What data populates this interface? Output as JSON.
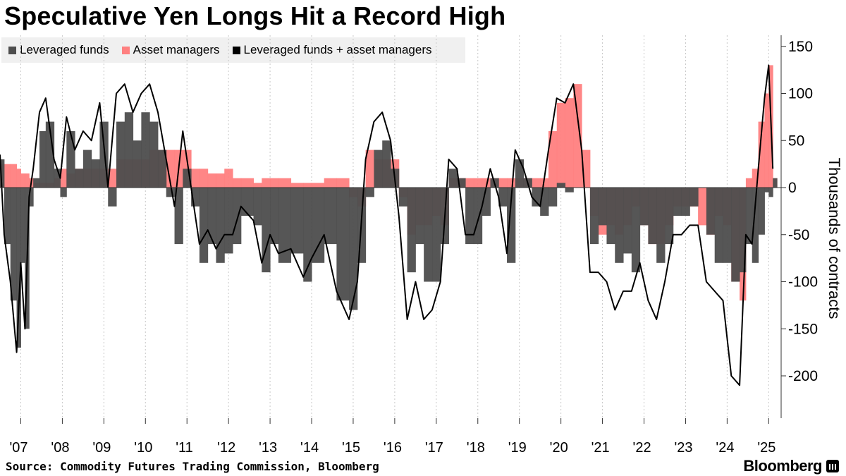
{
  "header": {
    "title": "Speculative Yen Longs Hit a Record High"
  },
  "legend": {
    "items": [
      {
        "label": "Leveraged funds",
        "color": "#4d4d4d"
      },
      {
        "label": "Asset managers",
        "color": "#ff8080"
      },
      {
        "label": "Leveraged funds + asset managers",
        "color": "#000000"
      }
    ]
  },
  "footer": {
    "source": "Source: Commodity Futures Trading Commission, Bloomberg",
    "brand": "Bloomberg"
  },
  "chart_data": {
    "type": "area",
    "title": "Speculative Yen Longs Hit a Record High",
    "ylabel": "Thousands of contracts",
    "xlabel": "",
    "ylim": [
      -250,
      160
    ],
    "y_ticks": [
      150,
      100,
      50,
      0,
      -50,
      -100,
      -150,
      -200
    ],
    "x_ticks": [
      "'07",
      "'08",
      "'09",
      "'10",
      "'11",
      "'12",
      "'13",
      "'14",
      "'15",
      "'16",
      "'17",
      "'18",
      "'19",
      "'20",
      "'21",
      "'22",
      "'23",
      "'24",
      "'25"
    ],
    "x_tick_values": [
      2007,
      2008,
      2009,
      2010,
      2011,
      2012,
      2013,
      2014,
      2015,
      2016,
      2017,
      2018,
      2019,
      2020,
      2021,
      2022,
      2023,
      2024,
      2025
    ],
    "xlim": [
      2006.5,
      2025.3
    ],
    "grid": "vertical-dotted",
    "legend_position": "top-left",
    "x": [
      2006.5,
      2006.6,
      2006.75,
      2006.9,
      2007.0,
      2007.1,
      2007.2,
      2007.3,
      2007.45,
      2007.6,
      2007.8,
      2007.95,
      2008.1,
      2008.3,
      2008.5,
      2008.7,
      2008.9,
      2009.1,
      2009.3,
      2009.5,
      2009.7,
      2009.9,
      2010.1,
      2010.3,
      2010.5,
      2010.7,
      2010.9,
      2011.1,
      2011.3,
      2011.5,
      2011.7,
      2011.9,
      2012.1,
      2012.3,
      2012.6,
      2012.8,
      2013.0,
      2013.2,
      2013.5,
      2013.8,
      2014.0,
      2014.3,
      2014.6,
      2014.9,
      2015.1,
      2015.3,
      2015.5,
      2015.7,
      2015.9,
      2016.1,
      2016.3,
      2016.5,
      2016.7,
      2016.9,
      2017.1,
      2017.3,
      2017.5,
      2017.7,
      2017.9,
      2018.1,
      2018.3,
      2018.5,
      2018.7,
      2018.9,
      2019.1,
      2019.3,
      2019.5,
      2019.7,
      2019.9,
      2020.1,
      2020.3,
      2020.5,
      2020.7,
      2020.9,
      2021.1,
      2021.3,
      2021.5,
      2021.7,
      2021.9,
      2022.1,
      2022.3,
      2022.5,
      2022.7,
      2022.9,
      2023.1,
      2023.3,
      2023.5,
      2023.7,
      2023.9,
      2024.1,
      2024.3,
      2024.45,
      2024.6,
      2024.75,
      2024.9,
      2025.0,
      2025.1
    ],
    "series": [
      {
        "name": "Leveraged funds",
        "values": [
          30,
          -60,
          -120,
          -170,
          -80,
          -150,
          -20,
          10,
          60,
          70,
          20,
          -10,
          60,
          20,
          40,
          30,
          70,
          -20,
          70,
          80,
          50,
          80,
          70,
          40,
          -10,
          -60,
          20,
          -20,
          -80,
          -60,
          -80,
          -70,
          -60,
          -30,
          -40,
          -90,
          -60,
          -80,
          -70,
          -100,
          -80,
          -60,
          -120,
          -130,
          -80,
          -10,
          40,
          50,
          20,
          -20,
          -90,
          -60,
          -100,
          -100,
          -60,
          20,
          10,
          -60,
          -60,
          -30,
          10,
          -20,
          -80,
          30,
          10,
          -20,
          -30,
          -20,
          5,
          -5,
          0,
          0,
          -60,
          -40,
          -60,
          -80,
          -70,
          -90,
          -40,
          -60,
          -80,
          -60,
          -30,
          -30,
          -20,
          0,
          -50,
          -80,
          -80,
          -100,
          -90,
          -60,
          -80,
          -50,
          -5,
          -10,
          10
        ]
      },
      {
        "name": "Asset managers",
        "values": [
          25,
          25,
          25,
          20,
          15,
          15,
          10,
          5,
          5,
          5,
          10,
          20,
          15,
          20,
          20,
          20,
          20,
          20,
          30,
          30,
          30,
          30,
          40,
          40,
          40,
          40,
          40,
          20,
          20,
          15,
          15,
          20,
          10,
          10,
          5,
          10,
          10,
          10,
          5,
          5,
          5,
          10,
          10,
          -10,
          -20,
          40,
          30,
          30,
          30,
          -10,
          -50,
          -40,
          -40,
          -30,
          -40,
          10,
          10,
          10,
          10,
          10,
          10,
          10,
          10,
          10,
          10,
          10,
          10,
          60,
          90,
          95,
          110,
          40,
          -30,
          -50,
          -40,
          -50,
          -40,
          -20,
          -40,
          -60,
          -60,
          -40,
          -20,
          -20,
          -20,
          -40,
          -50,
          -30,
          -40,
          -100,
          -120,
          10,
          20,
          70,
          100,
          130,
          10
        ]
      },
      {
        "name": "Leveraged funds + asset managers",
        "values": [
          35,
          -50,
          -100,
          -175,
          -80,
          -150,
          -10,
          20,
          80,
          95,
          30,
          10,
          75,
          40,
          60,
          50,
          90,
          0,
          100,
          110,
          80,
          100,
          110,
          80,
          30,
          -20,
          60,
          0,
          -60,
          -45,
          -65,
          -50,
          -50,
          -20,
          -35,
          -80,
          -50,
          -70,
          -65,
          -95,
          -75,
          -50,
          -110,
          -140,
          -100,
          30,
          70,
          80,
          50,
          -30,
          -140,
          -100,
          -140,
          -130,
          -100,
          30,
          20,
          -50,
          -50,
          -20,
          20,
          -10,
          -70,
          40,
          20,
          -10,
          -20,
          40,
          95,
          90,
          110,
          40,
          -90,
          -90,
          -100,
          -130,
          -110,
          -110,
          -80,
          -120,
          -140,
          -100,
          -50,
          -50,
          -40,
          -40,
          -100,
          -110,
          -120,
          -200,
          -210,
          -50,
          -60,
          20,
          95,
          130,
          20
        ]
      }
    ]
  }
}
